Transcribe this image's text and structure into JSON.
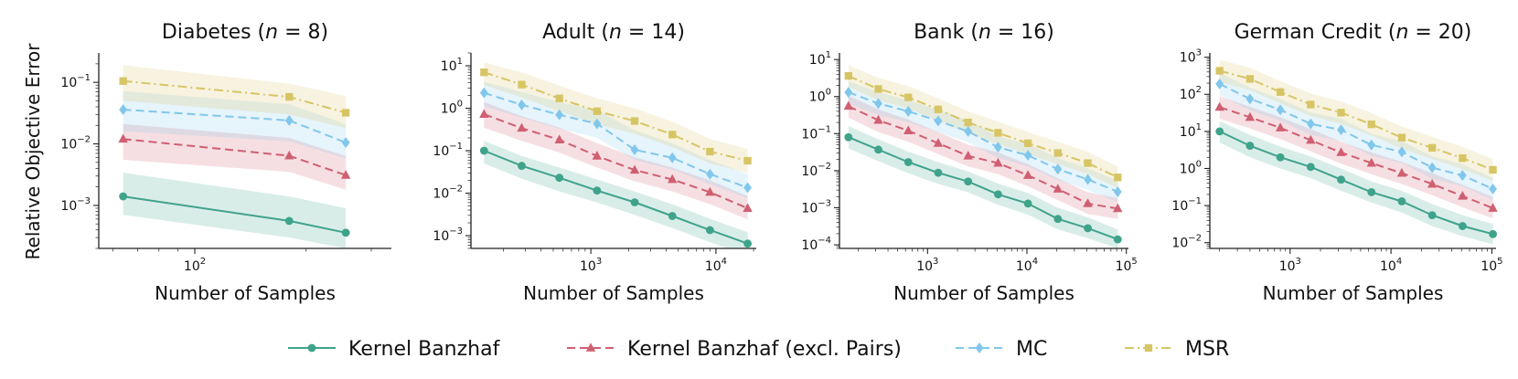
{
  "figure": {
    "ylabel": "Relative Objective Error",
    "xlabel": "Number of Samples"
  },
  "chart_data": [
    {
      "type": "line",
      "title": "Diabetes (n = 8)",
      "title_prefix": "Diabetes (",
      "title_n": "8",
      "xlabel": "Number of Samples",
      "ylabel": "Relative Objective Error",
      "xscale": "log",
      "yscale": "log",
      "xlim": [
        55,
        340
      ],
      "ylim": [
        0.0002,
        0.3
      ],
      "xticks": [
        100
      ],
      "yticks": [
        0.001,
        0.01,
        0.1
      ],
      "x": [
        64,
        180,
        256
      ],
      "series": [
        {
          "name": "Kernel Banzhaf",
          "values": [
            0.0014,
            0.00056,
            0.00036
          ],
          "lower": [
            0.0007,
            0.0003,
            0.0002
          ],
          "upper": [
            0.0034,
            0.0014,
            0.0009
          ]
        },
        {
          "name": "Kernel Banzhaf (excl. Pairs)",
          "values": [
            0.012,
            0.0064,
            0.0031
          ],
          "lower": [
            0.0055,
            0.0035,
            0.0018
          ],
          "upper": [
            0.021,
            0.0125,
            0.0063
          ]
        },
        {
          "name": "MC",
          "values": [
            0.036,
            0.024,
            0.0105
          ],
          "lower": [
            0.016,
            0.011,
            0.0058
          ],
          "upper": [
            0.072,
            0.044,
            0.021
          ]
        },
        {
          "name": "MSR",
          "values": [
            0.105,
            0.058,
            0.032
          ],
          "lower": [
            0.05,
            0.03,
            0.018
          ],
          "upper": [
            0.19,
            0.095,
            0.06
          ]
        }
      ]
    },
    {
      "type": "line",
      "title": "Adult (n = 14)",
      "title_prefix": "Adult (",
      "title_n": "14",
      "xlabel": "Number of Samples",
      "ylabel": "",
      "xscale": "log",
      "yscale": "log",
      "xlim": [
        110,
        21000
      ],
      "ylim": [
        0.0005,
        20
      ],
      "xticks": [
        1000,
        10000
      ],
      "yticks": [
        0.001,
        0.01,
        0.1,
        1,
        10
      ],
      "x": [
        140,
        280,
        560,
        1120,
        2240,
        4480,
        8960,
        17920
      ],
      "series": [
        {
          "name": "Kernel Banzhaf",
          "values": [
            0.1,
            0.044,
            0.023,
            0.0115,
            0.0061,
            0.0029,
            0.00135,
            0.00065
          ],
          "lower": [
            0.05,
            0.022,
            0.011,
            0.006,
            0.0031,
            0.0015,
            0.0007,
            0.00035
          ],
          "upper": [
            0.17,
            0.075,
            0.04,
            0.021,
            0.011,
            0.0055,
            0.0025,
            0.0012
          ]
        },
        {
          "name": "Kernel Banzhaf (excl. Pairs)",
          "values": [
            0.72,
            0.34,
            0.18,
            0.075,
            0.035,
            0.021,
            0.0105,
            0.0044
          ],
          "lower": [
            0.35,
            0.17,
            0.09,
            0.04,
            0.019,
            0.011,
            0.0055,
            0.0024
          ],
          "upper": [
            1.4,
            0.65,
            0.35,
            0.15,
            0.07,
            0.04,
            0.02,
            0.0085
          ]
        },
        {
          "name": "MC",
          "values": [
            2.3,
            1.2,
            0.7,
            0.43,
            0.105,
            0.068,
            0.028,
            0.0135
          ],
          "lower": [
            1.1,
            0.6,
            0.33,
            0.2,
            0.06,
            0.036,
            0.016,
            0.0075
          ],
          "upper": [
            4.2,
            2.4,
            1.4,
            0.9,
            0.3,
            0.15,
            0.06,
            0.028
          ]
        },
        {
          "name": "MSR",
          "values": [
            7.0,
            3.6,
            1.7,
            0.85,
            0.5,
            0.24,
            0.095,
            0.058
          ],
          "lower": [
            3.5,
            1.8,
            0.85,
            0.42,
            0.25,
            0.12,
            0.05,
            0.03
          ],
          "upper": [
            12,
            7,
            3.4,
            1.7,
            1.0,
            0.48,
            0.19,
            0.11
          ]
        }
      ]
    },
    {
      "type": "line",
      "title": "Bank (n = 16)",
      "title_prefix": "Bank (",
      "title_n": "16",
      "xlabel": "Number of Samples",
      "ylabel": "",
      "xscale": "log",
      "yscale": "log",
      "xlim": [
        130,
        105000
      ],
      "ylim": [
        8e-05,
        15
      ],
      "xticks": [
        1000,
        10000,
        100000
      ],
      "yticks": [
        0.0001,
        0.001,
        0.01,
        0.1,
        1,
        10
      ],
      "x": [
        160,
        320,
        640,
        1280,
        2560,
        5120,
        10240,
        20480,
        40960,
        81920
      ],
      "series": [
        {
          "name": "Kernel Banzhaf",
          "values": [
            0.08,
            0.037,
            0.017,
            0.0088,
            0.0051,
            0.0023,
            0.0013,
            0.0005,
            0.00028,
            0.00014
          ],
          "lower": [
            0.04,
            0.018,
            0.0085,
            0.0044,
            0.0026,
            0.0012,
            0.00065,
            0.00026,
            0.00015,
            8e-05
          ],
          "upper": [
            0.16,
            0.07,
            0.033,
            0.017,
            0.0095,
            0.0045,
            0.0025,
            0.001,
            0.00055,
            0.00026
          ]
        },
        {
          "name": "Kernel Banzhaf (excl. Pairs)",
          "values": [
            0.55,
            0.23,
            0.12,
            0.055,
            0.025,
            0.016,
            0.0075,
            0.0032,
            0.0013,
            0.00095
          ],
          "lower": [
            0.27,
            0.11,
            0.06,
            0.028,
            0.013,
            0.008,
            0.0038,
            0.0016,
            0.00068,
            0.0005
          ],
          "upper": [
            1.05,
            0.45,
            0.24,
            0.11,
            0.05,
            0.031,
            0.015,
            0.0062,
            0.0026,
            0.0018
          ]
        },
        {
          "name": "MC",
          "values": [
            1.3,
            0.65,
            0.4,
            0.22,
            0.115,
            0.043,
            0.026,
            0.011,
            0.0058,
            0.0027
          ],
          "lower": [
            0.65,
            0.32,
            0.2,
            0.11,
            0.058,
            0.022,
            0.013,
            0.0056,
            0.003,
            0.0014
          ],
          "upper": [
            2.6,
            1.3,
            0.8,
            0.44,
            0.23,
            0.085,
            0.052,
            0.022,
            0.0115,
            0.0053
          ]
        },
        {
          "name": "MSR",
          "values": [
            3.6,
            1.6,
            0.95,
            0.45,
            0.2,
            0.105,
            0.055,
            0.03,
            0.016,
            0.0066
          ],
          "lower": [
            1.8,
            0.8,
            0.48,
            0.22,
            0.1,
            0.052,
            0.028,
            0.015,
            0.008,
            0.0034
          ],
          "upper": [
            7.0,
            3.2,
            1.9,
            0.9,
            0.4,
            0.21,
            0.11,
            0.06,
            0.032,
            0.013
          ]
        }
      ]
    },
    {
      "type": "line",
      "title": "German Credit (n = 20)",
      "title_prefix": "German Credit (",
      "title_n": "20",
      "xlabel": "Number of Samples",
      "ylabel": "",
      "xscale": "log",
      "yscale": "log",
      "xlim": [
        160,
        110000
      ],
      "ylim": [
        0.007,
        1300
      ],
      "xticks": [
        1000,
        10000,
        100000
      ],
      "yticks": [
        0.01,
        0.1,
        1,
        10,
        100,
        1000
      ],
      "x": [
        200,
        400,
        800,
        1600,
        3200,
        6400,
        12800,
        25600,
        51200,
        102400
      ],
      "series": [
        {
          "name": "Kernel Banzhaf",
          "values": [
            10,
            4.1,
            2.0,
            1.1,
            0.5,
            0.23,
            0.13,
            0.055,
            0.028,
            0.017
          ],
          "lower": [
            5,
            2.0,
            1.0,
            0.55,
            0.25,
            0.12,
            0.065,
            0.028,
            0.015,
            0.009
          ],
          "upper": [
            19,
            8,
            3.9,
            2.1,
            1.0,
            0.45,
            0.25,
            0.11,
            0.055,
            0.032
          ]
        },
        {
          "name": "Kernel Banzhaf (excl. Pairs)",
          "values": [
            45,
            24,
            12.5,
            5.8,
            2.7,
            1.4,
            0.75,
            0.38,
            0.18,
            0.085
          ],
          "lower": [
            22,
            12,
            6.2,
            2.9,
            1.35,
            0.7,
            0.38,
            0.19,
            0.09,
            0.045
          ],
          "upper": [
            88,
            46,
            24,
            11.5,
            5.3,
            2.7,
            1.5,
            0.75,
            0.36,
            0.17
          ]
        },
        {
          "name": "MC",
          "values": [
            190,
            75,
            38,
            16,
            11,
            4.3,
            2.8,
            1.05,
            0.65,
            0.28
          ],
          "lower": [
            95,
            37,
            19,
            8,
            5.5,
            2.2,
            1.4,
            0.52,
            0.33,
            0.14
          ],
          "upper": [
            380,
            150,
            75,
            32,
            22,
            8.5,
            5.5,
            2.1,
            1.3,
            0.55
          ]
        },
        {
          "name": "MSR",
          "values": [
            430,
            260,
            115,
            53,
            32,
            15.5,
            6.8,
            3.6,
            1.9,
            0.92
          ],
          "lower": [
            215,
            130,
            57,
            26,
            16,
            7.7,
            3.4,
            1.8,
            0.95,
            0.46
          ],
          "upper": [
            850,
            520,
            230,
            105,
            64,
            31,
            13.5,
            7.2,
            3.8,
            1.8
          ]
        }
      ]
    }
  ],
  "legend": {
    "placement": "bottom-center",
    "items": [
      {
        "label": "Kernel Banzhaf",
        "color": "#3fa38c",
        "marker": "circle",
        "dash": "solid"
      },
      {
        "label": "Kernel Banzhaf (excl. Pairs)",
        "color": "#d05f72",
        "marker": "triangle",
        "dash": "dashed"
      },
      {
        "label": "MC",
        "color": "#81c7ec",
        "marker": "diamond",
        "dash": "dashed"
      },
      {
        "label": "MSR",
        "color": "#d7c565",
        "marker": "square",
        "dash": "dashdot"
      }
    ]
  }
}
